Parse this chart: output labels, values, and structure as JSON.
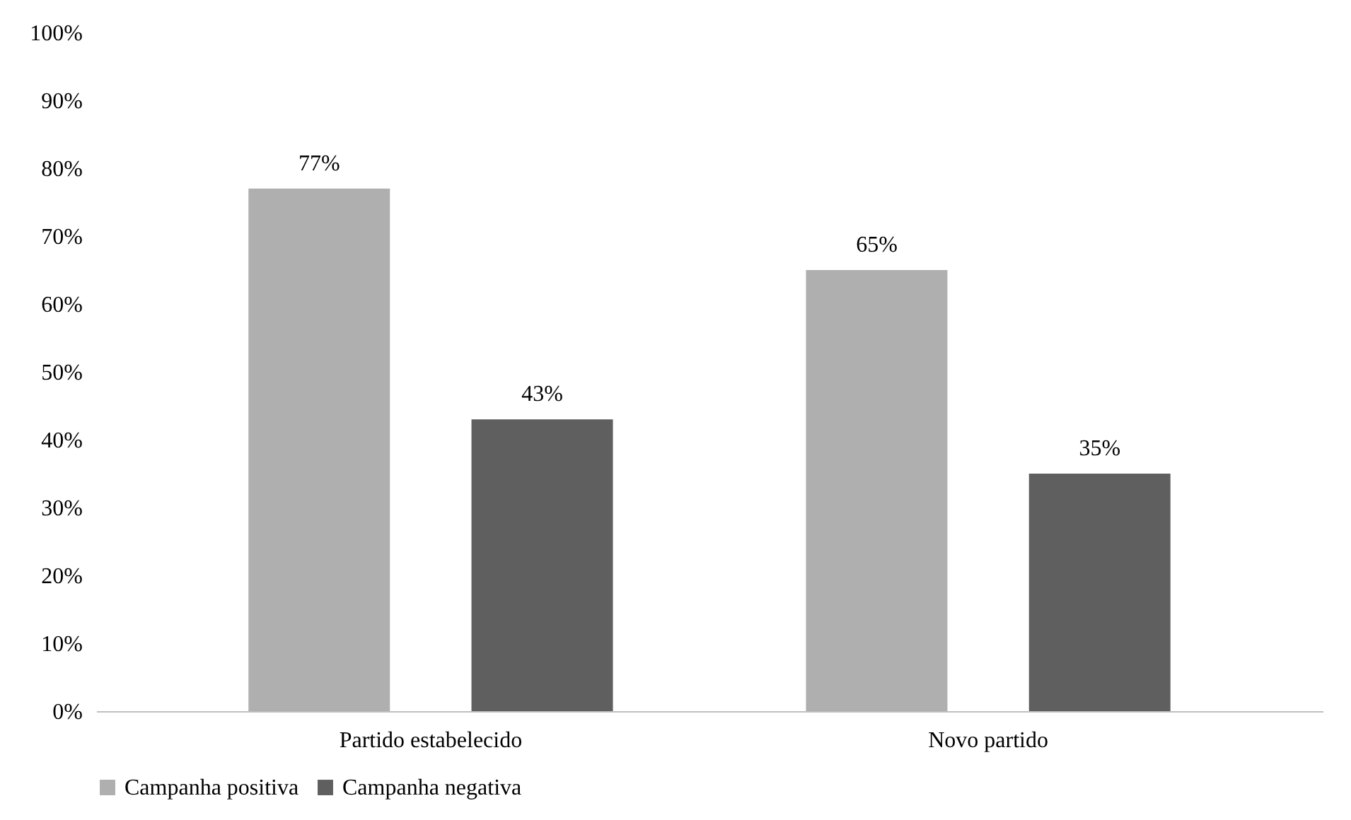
{
  "chart_data": {
    "type": "bar",
    "categories": [
      "Partido estabelecido",
      "Novo partido"
    ],
    "series": [
      {
        "name": "Campanha positiva",
        "color": "#afafaf",
        "values": [
          77,
          65
        ],
        "value_labels": [
          "77%",
          "65%"
        ]
      },
      {
        "name": "Campanha negativa",
        "color": "#5f5f5f",
        "values": [
          43,
          35
        ],
        "value_labels": [
          "43%",
          "35%"
        ]
      }
    ],
    "ylim": [
      0,
      100
    ],
    "yticks": [
      {
        "value": 0,
        "label": "0%"
      },
      {
        "value": 10,
        "label": "10%"
      },
      {
        "value": 20,
        "label": "20%"
      },
      {
        "value": 30,
        "label": "30%"
      },
      {
        "value": 40,
        "label": "40%"
      },
      {
        "value": 50,
        "label": "50%"
      },
      {
        "value": 60,
        "label": "60%"
      },
      {
        "value": 70,
        "label": "70%"
      },
      {
        "value": 80,
        "label": "80%"
      },
      {
        "value": 90,
        "label": "90%"
      },
      {
        "value": 100,
        "label": "100%"
      }
    ],
    "grid": false,
    "legend": "bottom"
  }
}
